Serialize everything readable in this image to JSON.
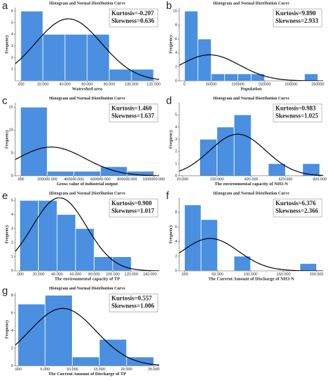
{
  "chart_data": [
    {
      "type": "histogram",
      "panel_label": "a",
      "title": "Histogram and Normal Distribution Curve",
      "x_label": "Watershed area",
      "y_label": "Frequency",
      "bins": [
        0,
        20000,
        40000,
        60000,
        80000,
        100000,
        120000
      ],
      "counts": [
        6,
        4,
        4,
        4,
        1,
        1
      ],
      "color": "#4a8fe0",
      "xlim": [
        -5000,
        125000
      ],
      "ylim": [
        0,
        6.3
      ],
      "yticks": [
        1,
        2,
        3,
        4,
        5,
        6
      ],
      "xticks": [
        {
          "value": 0,
          "label": ".000"
        },
        {
          "value": 20000,
          "label": "20.000"
        },
        {
          "value": 40000,
          "label": "40.000"
        },
        {
          "value": 60000,
          "label": "60.000"
        },
        {
          "value": 80000,
          "label": "80.000"
        },
        {
          "value": 100000,
          "label": "100.000"
        },
        {
          "value": 120000,
          "label": "120.000"
        }
      ],
      "annotations": [
        "Kurtosis=-0.207",
        "Skewness=0.636"
      ]
    },
    {
      "type": "histogram",
      "panel_label": "b",
      "title": "Histogram and Normal Distribution Curve",
      "x_label": "Population",
      "y_label": "Frequency",
      "bins": [
        0,
        25000,
        50000,
        75000,
        100000,
        125000,
        150000,
        175000,
        200000,
        225000,
        250000
      ],
      "counts": [
        10,
        6,
        1,
        1,
        1,
        1,
        0,
        0,
        0,
        1
      ],
      "color": "#4a8fe0",
      "xlim": [
        -10000,
        260000
      ],
      "ylim": [
        0,
        10.5
      ],
      "yticks": [
        0,
        2,
        4,
        6,
        8,
        10
      ],
      "xticks": [
        0,
        50000,
        100000,
        150000,
        200000,
        250000
      ],
      "annotations": [
        "Kurtosis=9.890",
        "Skewness=2.933"
      ]
    },
    {
      "type": "histogram",
      "panel_label": "c",
      "title": "Histogram and Normal Distribution Curve",
      "x_label": "Gross value of industrial output",
      "y_label": "Frequency",
      "bins": [
        0,
        200000,
        400000,
        600000,
        800000,
        1000000
      ],
      "counts": [
        15,
        1,
        1,
        2,
        1
      ],
      "color": "#4a8fe0",
      "xlim": [
        -40000,
        1040000
      ],
      "ylim": [
        0,
        16
      ],
      "yticks": [
        0,
        5,
        10,
        15
      ],
      "xticks": [
        {
          "value": 0,
          "label": ".000"
        },
        {
          "value": 200000,
          "label": "200000.000"
        },
        {
          "value": 400000,
          "label": "400000.000"
        },
        {
          "value": 600000,
          "label": "600000.000"
        },
        {
          "value": 800000,
          "label": "800000.000"
        },
        {
          "value": 1000000,
          "label": "1000000.000"
        }
      ],
      "annotations": [
        "Kurtosis=1.460",
        "Skewness=1.637"
      ]
    },
    {
      "type": "histogram",
      "panel_label": "d",
      "title": "Histogram and Normal Distribution Curve",
      "x_label": "The environmental capacity of NH3-N",
      "y_label": "Frequency",
      "bins": [
        120,
        220,
        320,
        420,
        520,
        620,
        720,
        820
      ],
      "counts": [
        3,
        4,
        5,
        0,
        1,
        0,
        1
      ],
      "color": "#4a8fe0",
      "xlim": [
        0,
        840
      ],
      "ylim": [
        0,
        6
      ],
      "yticks": [
        0,
        1,
        2,
        3,
        4,
        5
      ],
      "xticks": [
        {
          "value": 20,
          "label": "20.000"
        },
        {
          "value": 220,
          "label": "220.000"
        },
        {
          "value": 420,
          "label": "420.000"
        },
        {
          "value": 620,
          "label": "620.000"
        },
        {
          "value": 820,
          "label": "820.000"
        }
      ],
      "annotations": [
        "Kurtosis=0.983",
        "Skewness=1.025"
      ]
    },
    {
      "type": "histogram",
      "panel_label": "e",
      "title": "Histogram and Normal Distribution Curve",
      "x_label": "The environmental capacity of TP",
      "y_label": "Frequency",
      "bins": [
        0,
        20,
        40,
        60,
        80,
        100,
        120
      ],
      "counts": [
        5,
        5,
        4,
        3,
        1,
        1
      ],
      "color": "#4a8fe0",
      "xlim": [
        -5,
        150
      ],
      "ylim": [
        0,
        5.2
      ],
      "yticks": [
        0,
        1,
        2,
        3,
        4,
        5
      ],
      "xticks": [
        {
          "value": 0,
          "label": ".000"
        },
        {
          "value": 20,
          "label": "20.000"
        },
        {
          "value": 40,
          "label": "40.000"
        },
        {
          "value": 60,
          "label": "60.000"
        },
        {
          "value": 80,
          "label": "80.000"
        },
        {
          "value": 100,
          "label": "100.000"
        },
        {
          "value": 120,
          "label": "120.000"
        },
        {
          "value": 140,
          "label": "140.000"
        }
      ],
      "annotations": [
        "Kurtosis=0.900",
        "Skewness=1.017"
      ]
    },
    {
      "type": "histogram",
      "panel_label": "f",
      "title": "Histogram and Normal Distribution Curve",
      "x_label": "The Current Amount of Discharge of NH3-N",
      "y_label": "Frequency",
      "bins": [
        0,
        25,
        50,
        75,
        100,
        125,
        150,
        175,
        200
      ],
      "counts": [
        9,
        7,
        0,
        2,
        0,
        0,
        0,
        1
      ],
      "color": "#4a8fe0",
      "xlim": [
        -8,
        210
      ],
      "ylim": [
        0,
        10
      ],
      "yticks": [
        0,
        2,
        4,
        6,
        8
      ],
      "xticks": [
        {
          "value": 0,
          "label": ".000"
        },
        {
          "value": 50,
          "label": "50.000"
        },
        {
          "value": 100,
          "label": "100.000"
        },
        {
          "value": 150,
          "label": "150.000"
        },
        {
          "value": 200,
          "label": "200.000"
        }
      ],
      "annotations": [
        "Kurtosis=6.376",
        "Skewness=2.366"
      ]
    },
    {
      "type": "histogram",
      "panel_label": "g",
      "title": "Histogram and Normal Distribution Curve",
      "x_label": "The Current Amount of Discharge of TP",
      "y_label": "Frequency",
      "bins": [
        0,
        5,
        10,
        15,
        20,
        25
      ],
      "counts": [
        7,
        8,
        1,
        3,
        1
      ],
      "color": "#4a8fe0",
      "xlim": [
        -0.5,
        26
      ],
      "ylim": [
        0,
        8.3
      ],
      "yticks": [
        0,
        2,
        4,
        6,
        8
      ],
      "xticks": [
        {
          "value": 0,
          "label": ".000"
        },
        {
          "value": 5,
          "label": "5.000"
        },
        {
          "value": 10,
          "label": "10.000"
        },
        {
          "value": 15,
          "label": "15.000"
        },
        {
          "value": 20,
          "label": "20.000"
        },
        {
          "value": 25,
          "label": "25.000"
        }
      ],
      "annotations": [
        "Kurtosis=0.557",
        "Skewness=1.006"
      ]
    }
  ]
}
